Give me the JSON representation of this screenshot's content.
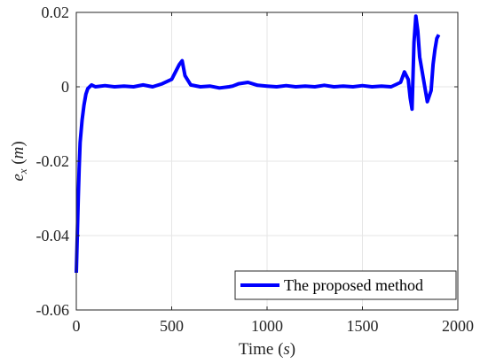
{
  "chart_data": {
    "type": "line",
    "title": "",
    "xlabel": "Time (s)",
    "xlabel_text": "Time",
    "xlabel_unit": "s",
    "ylabel": "e_x (m)",
    "ylabel_var": "e",
    "ylabel_sub": "x",
    "ylabel_unit": "m",
    "xlim": [
      0,
      2000
    ],
    "ylim": [
      -0.06,
      0.02
    ],
    "x_ticks": [
      0,
      500,
      1000,
      1500,
      2000
    ],
    "x_tick_labels": [
      "0",
      "500",
      "1000",
      "1500",
      "2000"
    ],
    "y_ticks": [
      -0.06,
      -0.04,
      -0.02,
      0,
      0.02
    ],
    "y_tick_labels": [
      "-0.06",
      "-0.04",
      "-0.02",
      "0",
      "0.02"
    ],
    "grid": true,
    "legend_position": "bottom-right",
    "series": [
      {
        "name": "The proposed method",
        "color": "#0000ff",
        "x": [
          0,
          5,
          10,
          15,
          20,
          30,
          40,
          50,
          60,
          70,
          80,
          100,
          150,
          200,
          250,
          300,
          350,
          400,
          450,
          500,
          520,
          540,
          555,
          570,
          600,
          650,
          700,
          750,
          800,
          820,
          850,
          900,
          950,
          1000,
          1050,
          1100,
          1150,
          1200,
          1250,
          1300,
          1350,
          1400,
          1450,
          1500,
          1550,
          1600,
          1650,
          1700,
          1720,
          1740,
          1750,
          1760,
          1770,
          1780,
          1790,
          1800,
          1820,
          1840,
          1860,
          1870,
          1880,
          1890,
          1900
        ],
        "y": [
          -0.05,
          -0.04,
          -0.03,
          -0.022,
          -0.015,
          -0.009,
          -0.005,
          -0.002,
          -0.0005,
          0.0,
          0.0005,
          0.0,
          0.0003,
          0.0,
          0.0002,
          0.0,
          0.0005,
          0.0,
          0.0008,
          0.002,
          0.004,
          0.006,
          0.007,
          0.003,
          0.0005,
          0.0,
          0.0002,
          -0.0003,
          0.0,
          0.0002,
          0.0008,
          0.0012,
          0.0004,
          0.0002,
          0.0,
          0.0003,
          0.0,
          0.0002,
          0.0,
          0.0004,
          0.0,
          0.0002,
          0.0,
          0.0003,
          0.0,
          0.0002,
          0.0,
          0.0012,
          0.004,
          0.002,
          -0.003,
          -0.006,
          0.012,
          0.019,
          0.015,
          0.008,
          0.002,
          -0.004,
          -0.001,
          0.006,
          0.01,
          0.013,
          0.014
        ]
      }
    ]
  }
}
